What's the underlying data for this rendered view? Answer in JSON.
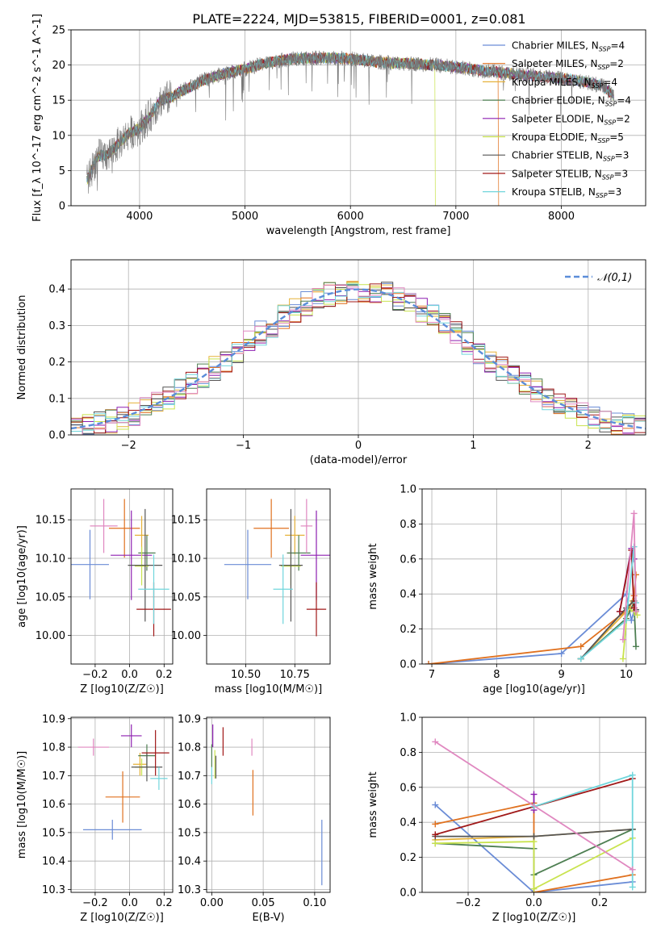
{
  "title": "PLATE=2224, MJD=53815, FIBERID=0001, z=0.081",
  "colors": [
    "#6a8cd6",
    "#e0711f",
    "#e6b23a",
    "#4e7f52",
    "#8d1fb0",
    "#c9e34f",
    "#555555",
    "#a01818",
    "#70d6dc",
    "#e088c0"
  ],
  "chart_data": [
    {
      "id": "spectrum",
      "type": "line",
      "xlabel": "wavelength [Angstrom, rest frame]",
      "ylabel": "Flux [f_λ 10^-17 erg cm^-2 s^-1 A^-1]",
      "xlim": [
        3350,
        8800
      ],
      "ylim": [
        0,
        25
      ],
      "xticks": [
        "4000",
        "5000",
        "6000",
        "7000",
        "8000"
      ],
      "yticks": [
        "0",
        "5",
        "10",
        "15",
        "20",
        "25"
      ],
      "legend": {
        "position": "right",
        "entries": [
          "Chabrier MILES, N_SSP=4",
          "Salpeter MILES, N_SSP=2",
          "Kroupa MILES, N_SSP=4",
          "Chabrier ELODIE, N_SSP=4",
          "Salpeter ELODIE, N_SSP=2",
          "Kroupa ELODIE, N_SSP=5",
          "Chabrier STELIB, N_SSP=3",
          "Salpeter STELIB, N_SSP=3",
          "Kroupa STELIB, N_SSP=3"
        ],
        "colors": [
          "#6a8cd6",
          "#e0711f",
          "#e6b23a",
          "#4e7f52",
          "#8d1fb0",
          "#c9e34f",
          "#555555",
          "#a01818",
          "#70d6dc"
        ]
      },
      "continuum": {
        "x": [
          3500,
          3600,
          3700,
          3800,
          3900,
          4000,
          4100,
          4200,
          4300,
          4400,
          4600,
          4800,
          5000,
          5200,
          5400,
          5600,
          5800,
          6000,
          6200,
          6400,
          6600,
          6800,
          7000,
          7200,
          7400,
          7600,
          7800,
          8000,
          8200,
          8400,
          8500
        ],
        "y": [
          3.5,
          7.0,
          7.3,
          8.8,
          10.3,
          11.0,
          12.8,
          15.0,
          15.5,
          16.3,
          17.8,
          18.8,
          19.4,
          20.3,
          20.8,
          21.0,
          21.0,
          20.9,
          20.5,
          20.3,
          20.2,
          20.0,
          19.7,
          19.3,
          19.0,
          18.6,
          18.4,
          18.1,
          17.7,
          17.0,
          15.5
        ]
      },
      "cutoffs": [
        {
          "wave": 6800,
          "color": "#c9e34f"
        },
        {
          "wave": 7400,
          "color": "#e0711f"
        }
      ]
    },
    {
      "id": "residual-histogram",
      "type": "histogram",
      "xlabel": "(data-model)/error",
      "ylabel": "Normed distribution",
      "xlim": [
        -2.5,
        2.5
      ],
      "ylim": [
        0,
        0.48
      ],
      "xticks": [
        "−2",
        "−1",
        "0",
        "1",
        "2"
      ],
      "yticks": [
        "0.0",
        "0.1",
        "0.2",
        "0.3",
        "0.4"
      ],
      "grid": true,
      "reference": {
        "name": "𝒩(0,1)",
        "mean": 0,
        "sigma": 1,
        "color": "#5b8dd9",
        "style": "dashed",
        "legend": "top-right"
      },
      "bin_width": 0.1
    },
    {
      "id": "age-vs-metallicity",
      "type": "errorbar",
      "xlabel": "Z [log10(Z/Z☉)]",
      "ylabel": "age  [log10(age/yr)]",
      "xlim": [
        -0.34,
        0.25
      ],
      "ylim": [
        9.963,
        10.19
      ],
      "xticks": [
        "−0.2",
        "0.0",
        "0.2"
      ],
      "yticks": [
        "10.00",
        "10.05",
        "10.10",
        "10.15"
      ],
      "points": [
        {
          "x": -0.23,
          "xerr": 0.11,
          "y": 10.092,
          "yerr": 0.045,
          "color": "#6a8cd6"
        },
        {
          "x": -0.03,
          "xerr": 0.09,
          "y": 10.139,
          "yerr": 0.038,
          "color": "#e0711f"
        },
        {
          "x": 0.07,
          "xerr": 0.04,
          "y": 10.13,
          "yerr": 0.025,
          "color": "#e6b23a"
        },
        {
          "x": 0.1,
          "xerr": 0.05,
          "y": 10.107,
          "yerr": 0.023,
          "color": "#4e7f52"
        },
        {
          "x": 0.01,
          "xerr": 0.12,
          "y": 10.104,
          "yerr": 0.058,
          "color": "#8d1fb0"
        },
        {
          "x": 0.07,
          "xerr": 0.04,
          "y": 10.09,
          "yerr": 0.025,
          "color": "#c9e34f"
        },
        {
          "x": 0.09,
          "xerr": 0.1,
          "y": 10.091,
          "yerr": 0.073,
          "color": "#555555"
        },
        {
          "x": 0.14,
          "xerr": 0.1,
          "y": 10.034,
          "yerr": 0.035,
          "color": "#a01818"
        },
        {
          "x": 0.14,
          "xerr": 0.09,
          "y": 10.06,
          "yerr": 0.045,
          "color": "#70d6dc"
        },
        {
          "x": -0.15,
          "xerr": 0.08,
          "y": 10.142,
          "yerr": 0.035,
          "color": "#e088c0"
        }
      ]
    },
    {
      "id": "age-vs-mass",
      "type": "errorbar",
      "xlabel": "mass [log10(M/M☉)]",
      "ylabel": "",
      "xlim": [
        10.3,
        10.93
      ],
      "ylim": [
        9.963,
        10.19
      ],
      "xticks": [
        "10.50",
        "10.75"
      ],
      "yticks": [
        "10.00",
        "10.05",
        "10.10",
        "10.15"
      ],
      "points": [
        {
          "x": 10.51,
          "xerr": 0.12,
          "y": 10.092,
          "yerr": 0.045,
          "color": "#6a8cd6"
        },
        {
          "x": 10.63,
          "xerr": 0.09,
          "y": 10.139,
          "yerr": 0.038,
          "color": "#e0711f"
        },
        {
          "x": 10.75,
          "xerr": 0.05,
          "y": 10.13,
          "yerr": 0.025,
          "color": "#e6b23a"
        },
        {
          "x": 10.77,
          "xerr": 0.06,
          "y": 10.107,
          "yerr": 0.023,
          "color": "#4e7f52"
        },
        {
          "x": 10.86,
          "xerr": 0.08,
          "y": 10.104,
          "yerr": 0.058,
          "color": "#8d1fb0"
        },
        {
          "x": 10.73,
          "xerr": 0.05,
          "y": 10.09,
          "yerr": 0.025,
          "color": "#c9e34f"
        },
        {
          "x": 10.73,
          "xerr": 0.06,
          "y": 10.091,
          "yerr": 0.073,
          "color": "#555555"
        },
        {
          "x": 10.86,
          "xerr": 0.05,
          "y": 10.034,
          "yerr": 0.035,
          "color": "#a01818"
        },
        {
          "x": 10.69,
          "xerr": 0.05,
          "y": 10.06,
          "yerr": 0.045,
          "color": "#70d6dc"
        },
        {
          "x": 10.81,
          "xerr": 0.03,
          "y": 10.142,
          "yerr": 0.035,
          "color": "#e088c0"
        }
      ]
    },
    {
      "id": "mass-weight-vs-age",
      "type": "line",
      "xlabel": "age  [log10(age/yr)]",
      "ylabel": "mass weight",
      "xlim": [
        6.85,
        10.3
      ],
      "ylim": [
        0,
        1.0
      ],
      "xticks": [
        "7",
        "8",
        "9",
        "10"
      ],
      "yticks": [
        "0.0",
        "0.2",
        "0.4",
        "0.6",
        "0.8",
        "1.0"
      ],
      "grid": true,
      "series": [
        {
          "color": "#6a8cd6",
          "x": [
            6.95,
            9.0,
            10.0,
            10.08,
            10.12
          ],
          "y": [
            0.0,
            0.06,
            0.4,
            0.25,
            0.3
          ]
        },
        {
          "color": "#e0711f",
          "x": [
            6.95,
            9.3,
            10.05,
            10.12,
            10.15
          ],
          "y": [
            0.0,
            0.1,
            0.32,
            0.39,
            0.51
          ]
        },
        {
          "color": "#e6b23a",
          "x": [
            9.3,
            10.0,
            10.1,
            10.15
          ],
          "y": [
            0.03,
            0.3,
            0.36,
            0.3
          ]
        },
        {
          "color": "#4e7f52",
          "x": [
            9.3,
            10.0,
            10.12,
            10.15
          ],
          "y": [
            0.03,
            0.26,
            0.35,
            0.1
          ]
        },
        {
          "color": "#8d1fb0",
          "x": [
            9.9,
            10.08,
            10.12
          ],
          "y": [
            0.3,
            0.66,
            0.6
          ]
        },
        {
          "color": "#c9e34f",
          "x": [
            9.95,
            10.02,
            10.12,
            10.17
          ],
          "y": [
            0.03,
            0.32,
            0.3,
            0.28
          ]
        },
        {
          "color": "#555555",
          "x": [
            9.3,
            10.0,
            10.12,
            10.15
          ],
          "y": [
            0.03,
            0.32,
            0.36,
            0.31
          ]
        },
        {
          "color": "#a01818",
          "x": [
            9.9,
            10.08,
            10.12
          ],
          "y": [
            0.3,
            0.65,
            0.32
          ]
        },
        {
          "color": "#70d6dc",
          "x": [
            9.3,
            10.0,
            10.12,
            10.15
          ],
          "y": [
            0.03,
            0.25,
            0.67,
            0.35
          ]
        },
        {
          "color": "#e088c0",
          "x": [
            9.95,
            10.12,
            10.15
          ],
          "y": [
            0.14,
            0.86,
            0.3
          ]
        }
      ]
    },
    {
      "id": "mass-vs-metallicity",
      "type": "errorbar",
      "xlabel": "Z [log10(Z/Z☉)]",
      "ylabel": "mass [log10(M/M☉)]",
      "xlim": [
        -0.34,
        0.25
      ],
      "ylim": [
        10.29,
        10.905
      ],
      "xticks": [
        "−0.2",
        "0.0",
        "0.2"
      ],
      "yticks": [
        "10.3",
        "10.4",
        "10.5",
        "10.6",
        "10.7",
        "10.8",
        "10.9"
      ],
      "points": [
        {
          "x": -0.1,
          "xerr": 0.17,
          "y": 10.51,
          "yerr": 0.035,
          "color": "#6a8cd6"
        },
        {
          "x": -0.04,
          "xerr": 0.1,
          "y": 10.625,
          "yerr": 0.09,
          "color": "#e0711f"
        },
        {
          "x": 0.06,
          "xerr": 0.04,
          "y": 10.74,
          "yerr": 0.04,
          "color": "#e6b23a"
        },
        {
          "x": 0.1,
          "xerr": 0.05,
          "y": 10.77,
          "yerr": 0.04,
          "color": "#4e7f52"
        },
        {
          "x": 0.01,
          "xerr": 0.06,
          "y": 10.84,
          "yerr": 0.04,
          "color": "#8d1fb0"
        },
        {
          "x": 0.07,
          "xerr": 0.04,
          "y": 10.73,
          "yerr": 0.03,
          "color": "#c9e34f"
        },
        {
          "x": 0.1,
          "xerr": 0.09,
          "y": 10.73,
          "yerr": 0.05,
          "color": "#555555"
        },
        {
          "x": 0.15,
          "xerr": 0.08,
          "y": 10.78,
          "yerr": 0.08,
          "color": "#a01818"
        },
        {
          "x": 0.17,
          "xerr": 0.05,
          "y": 10.69,
          "yerr": 0.04,
          "color": "#70d6dc"
        },
        {
          "x": -0.21,
          "xerr": 0.09,
          "y": 10.8,
          "yerr": 0.03,
          "color": "#e088c0"
        }
      ]
    },
    {
      "id": "mass-vs-extinction",
      "type": "errorbar",
      "xlabel": "E(B-V)",
      "ylabel": "",
      "xlim": [
        -0.005,
        0.115
      ],
      "ylim": [
        10.29,
        10.905
      ],
      "xticks": [
        "0.00",
        "0.05",
        "0.10"
      ],
      "yticks": [
        "10.3",
        "10.4",
        "10.5",
        "10.6",
        "10.7",
        "10.8",
        "10.9"
      ],
      "points": [
        {
          "x": 0.107,
          "xerr": 0,
          "y": 10.43,
          "yerr": 0.115,
          "color": "#6a8cd6"
        },
        {
          "x": 0.04,
          "xerr": 0,
          "y": 10.64,
          "yerr": 0.08,
          "color": "#e0711f"
        },
        {
          "x": 0.0,
          "xerr": 0,
          "y": 10.77,
          "yerr": 0.04,
          "color": "#4e7f52"
        },
        {
          "x": 0.001,
          "xerr": 0,
          "y": 10.84,
          "yerr": 0.04,
          "color": "#8d1fb0"
        },
        {
          "x": 0.003,
          "xerr": 0,
          "y": 10.74,
          "yerr": 0.05,
          "color": "#c9e34f"
        },
        {
          "x": 0.004,
          "xerr": 0,
          "y": 10.73,
          "yerr": 0.04,
          "color": "#555555"
        },
        {
          "x": 0.011,
          "xerr": 0,
          "y": 10.82,
          "yerr": 0.05,
          "color": "#a01818"
        },
        {
          "x": 0.0,
          "xerr": 0,
          "y": 10.7,
          "yerr": 0.03,
          "color": "#70d6dc"
        },
        {
          "x": 0.039,
          "xerr": 0,
          "y": 10.8,
          "yerr": 0.03,
          "color": "#e088c0"
        }
      ]
    },
    {
      "id": "mass-weight-vs-metallicity",
      "type": "line",
      "xlabel": "Z [log10(Z/Z☉)]",
      "ylabel": "mass weight",
      "xlim": [
        -0.34,
        0.34
      ],
      "ylim": [
        0,
        1.0
      ],
      "xticks": [
        "−0.2",
        "0.0",
        "0.2"
      ],
      "yticks": [
        "0.0",
        "0.2",
        "0.4",
        "0.6",
        "0.8",
        "1.0"
      ],
      "grid": true,
      "series": [
        {
          "color": "#6a8cd6",
          "x": [
            -0.3,
            0.0,
            0.3
          ],
          "y": [
            0.5,
            0.0,
            0.06
          ]
        },
        {
          "color": "#e0711f",
          "x": [
            -0.3,
            0.0,
            0.0,
            0.3
          ],
          "y": [
            0.39,
            0.51,
            0.0,
            0.1
          ]
        },
        {
          "color": "#e6b23a",
          "x": [
            -0.3,
            0.0,
            0.3
          ],
          "y": [
            0.3,
            0.32,
            0.36
          ]
        },
        {
          "color": "#4e7f52",
          "x": [
            -0.3,
            0.0,
            0.0,
            0.3
          ],
          "y": [
            0.28,
            0.25,
            0.1,
            0.36
          ]
        },
        {
          "color": "#8d1fb0",
          "x": [
            0.0,
            0.0
          ],
          "y": [
            0.56,
            0.47
          ]
        },
        {
          "color": "#c9e34f",
          "x": [
            -0.3,
            0.0,
            0.0,
            0.3
          ],
          "y": [
            0.28,
            0.29,
            0.02,
            0.31
          ]
        },
        {
          "color": "#555555",
          "x": [
            -0.3,
            0.0,
            0.3
          ],
          "y": [
            0.32,
            0.32,
            0.36
          ]
        },
        {
          "color": "#a01818",
          "x": [
            -0.3,
            0.0,
            0.3
          ],
          "y": [
            0.33,
            0.49,
            0.65
          ]
        },
        {
          "color": "#70d6dc",
          "x": [
            0.0,
            0.3,
            0.3
          ],
          "y": [
            0.49,
            0.67,
            0.03
          ]
        },
        {
          "color": "#e088c0",
          "x": [
            -0.3,
            0.3
          ],
          "y": [
            0.86,
            0.13
          ]
        }
      ]
    }
  ]
}
